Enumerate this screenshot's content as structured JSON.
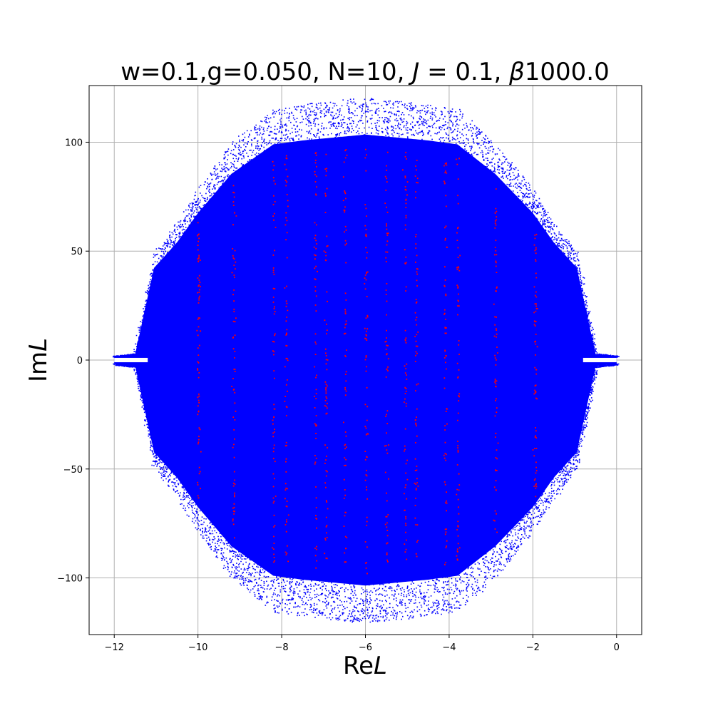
{
  "chart_data": {
    "type": "scatter",
    "title": "w=0.1,g=0.050, N=10, J = 0.1, β1000.0",
    "title_parts": {
      "prefix": "w=0.1,g=0.050, N=10, ",
      "j_symbol": "J",
      "j_value": " = 0.1, ",
      "beta_symbol": "β",
      "beta_value": "1000.0"
    },
    "xlabel": "ReL",
    "xlabel_parts": {
      "prefix": "Re",
      "symbol": "L"
    },
    "ylabel": "ImL",
    "ylabel_parts": {
      "prefix": "Im",
      "symbol": "L"
    },
    "xlim": [
      -12.6,
      0.6
    ],
    "ylim": [
      -126,
      126
    ],
    "x_ticks": [
      -12,
      -10,
      -8,
      -6,
      -4,
      -2,
      0
    ],
    "x_tick_labels": [
      "−12",
      "−10",
      "−8",
      "−6",
      "−4",
      "−2",
      "0"
    ],
    "y_ticks": [
      -100,
      -50,
      0,
      50,
      100
    ],
    "y_tick_labels": [
      "−100",
      "−50",
      "0",
      "50",
      "100"
    ],
    "grid": true,
    "legend": "none",
    "series": [
      {
        "color": "#0000ff",
        "marker": "dot",
        "description_envelope": [
          {
            "x": -12.0,
            "ymax": 2
          },
          {
            "x": -11.5,
            "ymax": 3
          },
          {
            "x": -11.05,
            "ymax": 47
          },
          {
            "x": -10.5,
            "ymax": 60
          },
          {
            "x": -10.0,
            "ymax": 75
          },
          {
            "x": -9.2,
            "ymax": 95
          },
          {
            "x": -8.2,
            "ymax": 110
          },
          {
            "x": -7.5,
            "ymax": 112
          },
          {
            "x": -6.0,
            "ymax": 115
          },
          {
            "x": -4.5,
            "ymax": 112
          },
          {
            "x": -3.8,
            "ymax": 110
          },
          {
            "x": -2.9,
            "ymax": 95
          },
          {
            "x": -2.0,
            "ymax": 75
          },
          {
            "x": -1.5,
            "ymax": 60
          },
          {
            "x": -0.95,
            "ymax": 47
          },
          {
            "x": -0.5,
            "ymax": 3
          },
          {
            "x": 0.0,
            "ymax": 2
          }
        ]
      },
      {
        "color": "#ff0000",
        "marker": "dot",
        "columns_x": [
          -10.0,
          -9.15,
          -8.2,
          -7.9,
          -7.2,
          -6.95,
          -6.5,
          -6.0,
          -5.5,
          -5.05,
          -4.8,
          -4.1,
          -3.8,
          -2.9,
          -1.95
        ]
      }
    ]
  }
}
